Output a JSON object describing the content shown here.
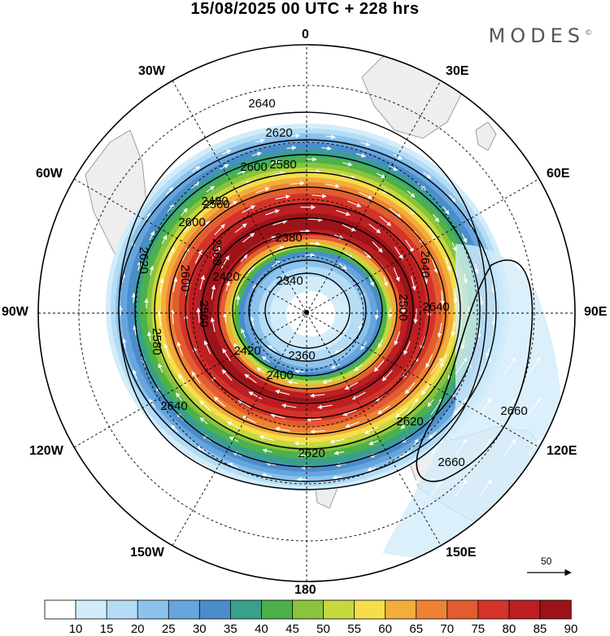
{
  "title": "15/08/2025  00 UTC  + 228 hrs",
  "brand": "MODES",
  "brand_mark": "©",
  "longitude_labels": {
    "n0": "0",
    "e30": "30E",
    "e60": "60E",
    "e90": "90E",
    "e120": "120E",
    "e150": "150E",
    "s180": "180",
    "w150": "150W",
    "w120": "120W",
    "w90": "90W",
    "w60": "60W",
    "w30": "30W"
  },
  "contour_labels": [
    "2640",
    "2620",
    "2600",
    "2580",
    "2560",
    "2480",
    "2420",
    "2380",
    "2340",
    "2360",
    "2400",
    "2420",
    "2600",
    "2620",
    "2640",
    "2660",
    "2660",
    "2640",
    "2620",
    "2600",
    "2560",
    "2560",
    "2580",
    "2640",
    "2620",
    "2500"
  ],
  "vector_reference": {
    "label": "50"
  },
  "colors": {
    "bands": [
      "#ffffff",
      "#d2ecfa",
      "#b4dcf5",
      "#8cc3ec",
      "#67a6dc",
      "#4a8dcb",
      "#3aa08c",
      "#4cb14a",
      "#8ac33c",
      "#c5d83f",
      "#f5de4a",
      "#f2ad3c",
      "#ee8232",
      "#e25c2f",
      "#d33329",
      "#bb1f22",
      "#9c1419"
    ],
    "land": "#eeeeee",
    "coast": "#888888"
  },
  "chart_data": {
    "type": "heatmap",
    "title": "15/08/2025  00 UTC  + 228 hrs",
    "projection": "south polar stereographic",
    "field": "wind speed (shaded), geopotential height (contours), wind vectors",
    "colorbar": {
      "ticks": [
        10,
        15,
        20,
        25,
        30,
        35,
        40,
        45,
        50,
        55,
        60,
        65,
        70,
        75,
        80,
        85,
        90
      ]
    },
    "contour_levels": [
      2340,
      2360,
      2380,
      2400,
      2420,
      2480,
      2500,
      2560,
      2580,
      2600,
      2620,
      2640,
      2660
    ],
    "vector_reference": 50
  }
}
